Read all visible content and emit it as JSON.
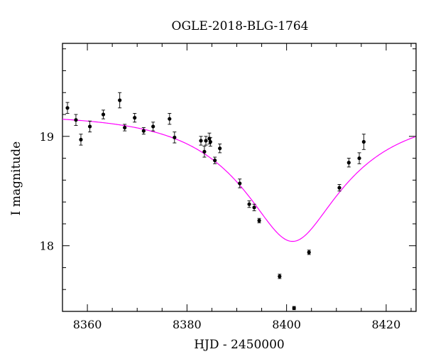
{
  "chart_data": {
    "type": "scatter",
    "title": "OGLE-2018-BLG-1764",
    "xlabel": "HJD - 2450000",
    "ylabel": "I magnitude",
    "xlim": [
      8355,
      8426
    ],
    "ylim": [
      19.85,
      17.4
    ],
    "y_inverted": true,
    "grid": false,
    "x_ticks": [
      8360,
      8380,
      8400,
      8420
    ],
    "y_ticks": [
      18,
      19
    ],
    "x_minor_step": 5,
    "y_minor_step": 0.2,
    "points": [
      {
        "x": 8356.0,
        "y": 19.26,
        "err": 0.05
      },
      {
        "x": 8357.7,
        "y": 19.15,
        "err": 0.05
      },
      {
        "x": 8358.7,
        "y": 18.97,
        "err": 0.05
      },
      {
        "x": 8360.5,
        "y": 19.09,
        "err": 0.05
      },
      {
        "x": 8363.2,
        "y": 19.2,
        "err": 0.04
      },
      {
        "x": 8366.5,
        "y": 19.33,
        "err": 0.07
      },
      {
        "x": 8367.5,
        "y": 19.08,
        "err": 0.03
      },
      {
        "x": 8369.5,
        "y": 19.17,
        "err": 0.04
      },
      {
        "x": 8371.3,
        "y": 19.05,
        "err": 0.03
      },
      {
        "x": 8373.2,
        "y": 19.09,
        "err": 0.04
      },
      {
        "x": 8376.5,
        "y": 19.16,
        "err": 0.05
      },
      {
        "x": 8377.5,
        "y": 18.99,
        "err": 0.05
      },
      {
        "x": 8382.8,
        "y": 18.96,
        "err": 0.04
      },
      {
        "x": 8383.5,
        "y": 18.86,
        "err": 0.05
      },
      {
        "x": 8383.8,
        "y": 18.96,
        "err": 0.04
      },
      {
        "x": 8384.5,
        "y": 18.98,
        "err": 0.05
      },
      {
        "x": 8384.7,
        "y": 18.95,
        "err": 0.04
      },
      {
        "x": 8385.6,
        "y": 18.78,
        "err": 0.03
      },
      {
        "x": 8386.6,
        "y": 18.89,
        "err": 0.04
      },
      {
        "x": 8390.6,
        "y": 18.57,
        "err": 0.04
      },
      {
        "x": 8392.5,
        "y": 18.38,
        "err": 0.03
      },
      {
        "x": 8393.5,
        "y": 18.35,
        "err": 0.03
      },
      {
        "x": 8394.5,
        "y": 18.23,
        "err": 0.02
      },
      {
        "x": 8398.6,
        "y": 17.72,
        "err": 0.02
      },
      {
        "x": 8401.5,
        "y": 17.43,
        "err": 0.015
      },
      {
        "x": 8404.5,
        "y": 17.94,
        "err": 0.02
      },
      {
        "x": 8410.6,
        "y": 18.53,
        "err": 0.03
      },
      {
        "x": 8412.5,
        "y": 18.76,
        "err": 0.04
      },
      {
        "x": 8414.6,
        "y": 18.8,
        "err": 0.05
      },
      {
        "x": 8415.5,
        "y": 18.95,
        "err": 0.07
      }
    ],
    "model_curve": {
      "baseline_mag": 19.2,
      "t0": 8401.2,
      "u0": 0.36,
      "tE": 20.5,
      "color": "#ff00ff"
    },
    "point_color": "#000000"
  }
}
